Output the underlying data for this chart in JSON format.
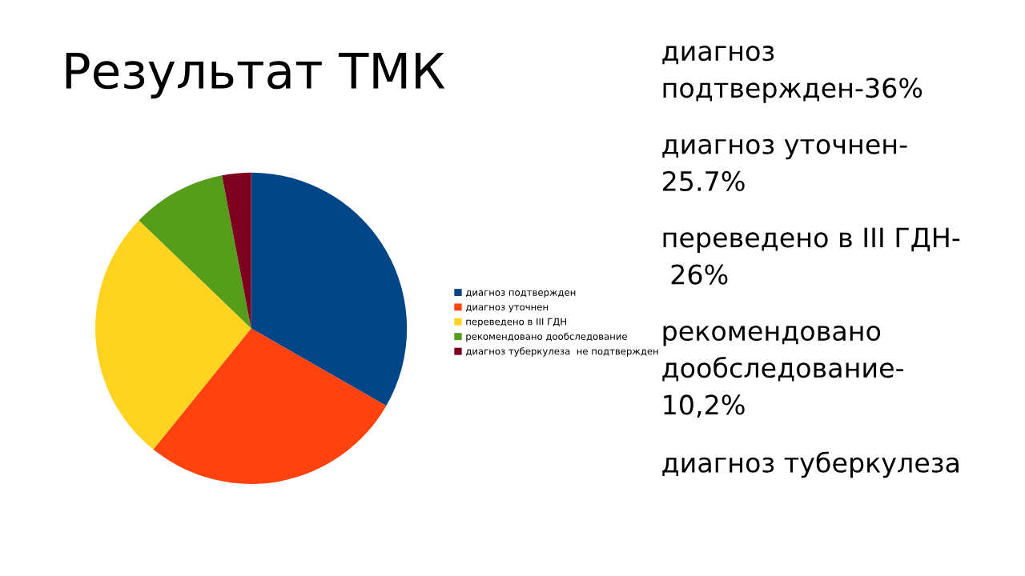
{
  "chart_data": {
    "type": "pie",
    "title": "Результат ТМК",
    "categories": [
      "диагноз подтвержден",
      "диагноз уточнен",
      "переведено в III ГДН",
      "рекомендовано дообследование",
      "диагноз туберкулеза  не подтвержден"
    ],
    "values": [
      33.3,
      27.5,
      26.4,
      9.8,
      3.0
    ],
    "colors": [
      "#004586",
      "#ff420e",
      "#ffd320",
      "#579d1c",
      "#7e0021"
    ],
    "legend": "right",
    "annotations": [
      "диагноз\nподтвержден-36%",
      "диагноз уточнен-\n25.7%",
      "переведено в III ГДН-\n 26%",
      "рекомендовано\nдообследование-\n10,2%",
      "диагноз туберкулеза"
    ]
  }
}
